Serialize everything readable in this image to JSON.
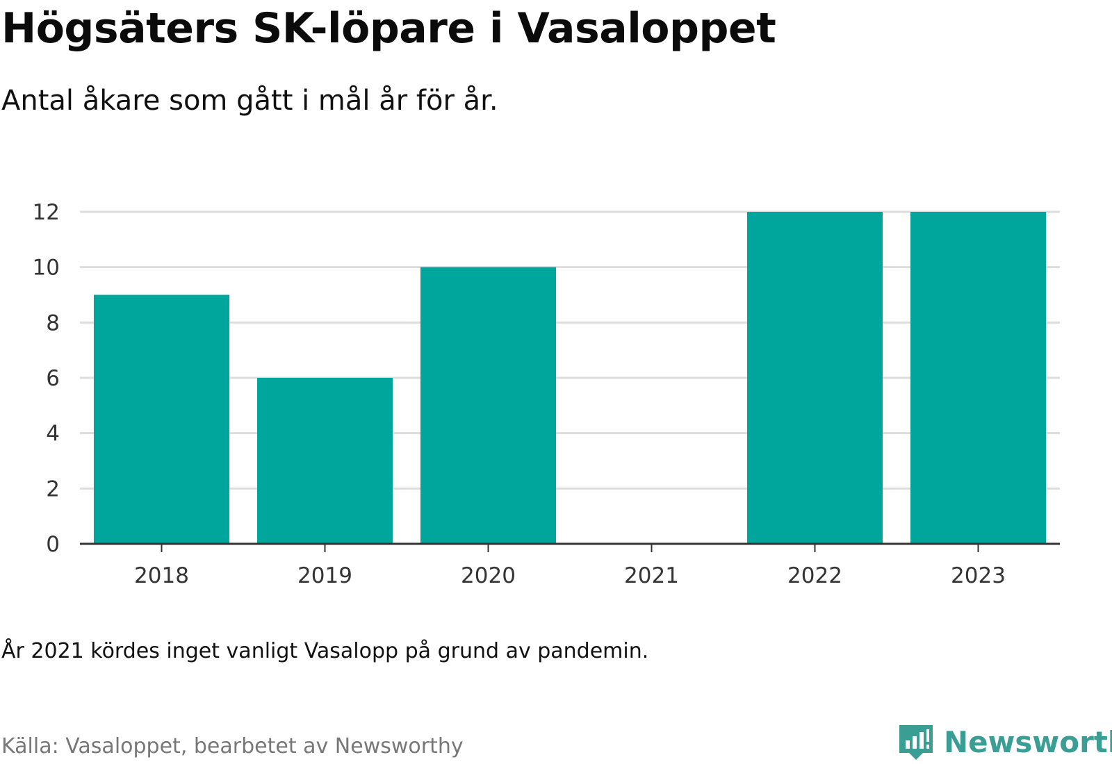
{
  "title": "Högsäters SK-löpare i Vasaloppet",
  "subtitle": "Antal åkare som gått i mål år för år.",
  "note": "År 2021 kördes inget vanligt Vasalopp på grund av pandemin.",
  "source": "Källa: Vasaloppet, bearbetet av Newsworthy",
  "brand": {
    "name": "Newsworthy",
    "icon": "newsworthy-logo-icon",
    "color": "#3a9e94"
  },
  "colors": {
    "bar": "#00a59b",
    "grid": "#dddddd",
    "axis": "#333333"
  },
  "chart_data": {
    "type": "bar",
    "categories": [
      "2018",
      "2019",
      "2020",
      "2021",
      "2022",
      "2023"
    ],
    "values": [
      9,
      6,
      10,
      null,
      12,
      12
    ],
    "ylim": [
      0,
      12
    ],
    "yticks": [
      0,
      2,
      4,
      6,
      8,
      10,
      12
    ],
    "grid": true,
    "xlabel": "",
    "ylabel": ""
  }
}
